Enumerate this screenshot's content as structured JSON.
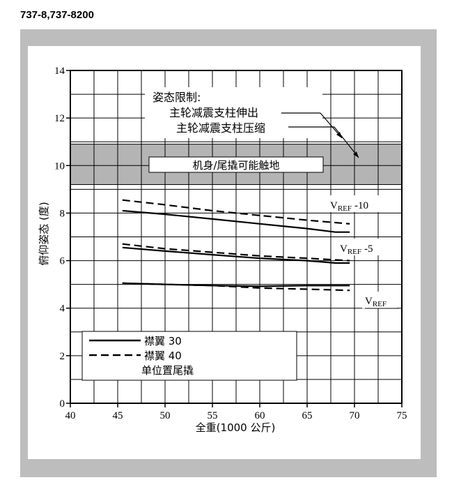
{
  "header": {
    "model": "737-8,737-8200"
  },
  "chart_data": {
    "type": "line",
    "xlabel": "全重(1000 公斤)",
    "ylabel": "俯仰姿态 (度)",
    "xlim": [
      40,
      75
    ],
    "ylim": [
      0,
      14
    ],
    "x_ticks": [
      "40",
      "45",
      "50",
      "55",
      "60",
      "65",
      "70",
      "75"
    ],
    "y_ticks": [
      "0",
      "2",
      "4",
      "6",
      "8",
      "10",
      "12",
      "14"
    ],
    "grid": true,
    "band": {
      "from": 9.2,
      "to": 10.9,
      "label": "机身/尾撬可能触地"
    },
    "limit_note": {
      "title": "姿态限制:",
      "line1": "主轮减震支柱伸出",
      "line2": "主轮减震支柱压缩"
    },
    "legend": {
      "placement": "bottom-left",
      "flaps30": "襟翼 30",
      "flaps40": "襟翼 40",
      "note": "单位置尾撬"
    },
    "series": [
      {
        "group": "VREF -10",
        "style": "solid",
        "x": [
          45.5,
          50,
          55,
          60,
          65,
          68,
          69.5
        ],
        "y": [
          8.1,
          7.95,
          7.75,
          7.55,
          7.35,
          7.2,
          7.2
        ]
      },
      {
        "group": "VREF -10",
        "style": "dashed",
        "x": [
          45.5,
          50,
          55,
          60,
          65,
          69.5
        ],
        "y": [
          8.55,
          8.35,
          8.1,
          7.9,
          7.7,
          7.55
        ]
      },
      {
        "group": "VREF -5",
        "style": "solid",
        "x": [
          45.5,
          50,
          55,
          60,
          65,
          68,
          69.5
        ],
        "y": [
          6.55,
          6.4,
          6.25,
          6.1,
          6.0,
          5.9,
          5.9
        ]
      },
      {
        "group": "VREF -5",
        "style": "dashed",
        "x": [
          45.5,
          50,
          55,
          60,
          65,
          69.5
        ],
        "y": [
          6.7,
          6.5,
          6.35,
          6.2,
          6.1,
          6.0
        ]
      },
      {
        "group": "VREF",
        "style": "solid",
        "x": [
          45.5,
          50,
          55,
          60,
          65,
          69.5
        ],
        "y": [
          5.05,
          5.0,
          4.95,
          4.92,
          4.95,
          4.95
        ]
      },
      {
        "group": "VREF",
        "style": "dashed",
        "x": [
          45.5,
          50,
          55,
          60,
          65,
          69.5
        ],
        "y": [
          5.05,
          5.0,
          4.95,
          4.85,
          4.8,
          4.75
        ]
      }
    ],
    "curve_labels": {
      "vref10_main": "V",
      "vref10_sub": "REF",
      "vref10_suffix": "-10",
      "vref5_main": "V",
      "vref5_sub": "REF",
      "vref5_suffix": "-5",
      "vref_main": "V",
      "vref_sub": "REF"
    }
  }
}
